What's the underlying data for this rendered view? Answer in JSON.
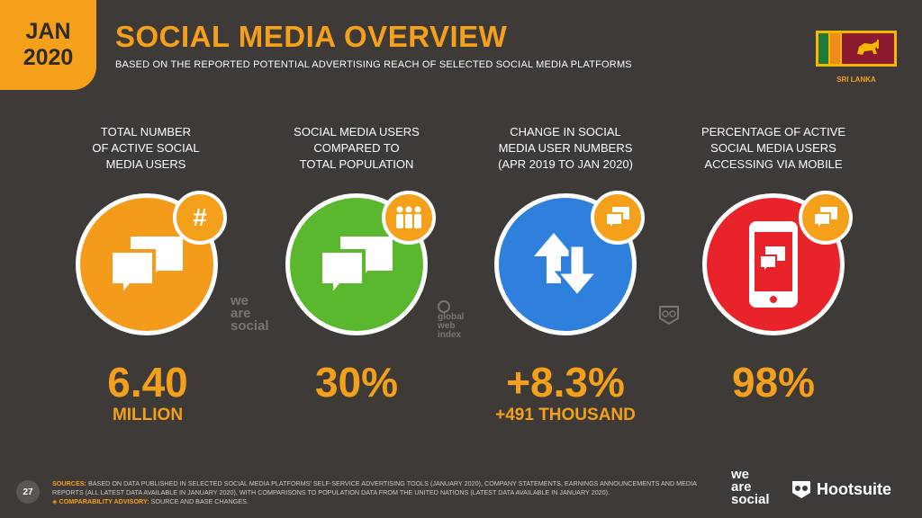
{
  "header": {
    "month": "JAN",
    "year": "2020",
    "title": "SOCIAL MEDIA OVERVIEW",
    "subtitle": "BASED ON THE REPORTED POTENTIAL ADVERTISING REACH OF SELECTED SOCIAL MEDIA PLATFORMS",
    "country": "SRI LANKA"
  },
  "columns": [
    {
      "label": "TOTAL NUMBER\nOF ACTIVE SOCIAL\nMEDIA USERS",
      "value": "6.40",
      "subvalue": "MILLION",
      "color": "#f59b1c",
      "icon": "chat-bubbles-icon",
      "badge_icon": "hashtag-icon"
    },
    {
      "label": "SOCIAL MEDIA USERS\nCOMPARED TO\nTOTAL POPULATION",
      "value": "30%",
      "subvalue": "",
      "color": "#5ab82e",
      "icon": "chat-bubbles-icon",
      "badge_icon": "people-icon"
    },
    {
      "label": "CHANGE IN SOCIAL\nMEDIA USER NUMBERS\n(APR 2019 TO JAN 2020)",
      "value": "+8.3%",
      "subvalue": "+491 THOUSAND",
      "color": "#2f7fdc",
      "icon": "up-down-arrows-icon",
      "badge_icon": "chat-icon"
    },
    {
      "label": "PERCENTAGE OF ACTIVE\nSOCIAL MEDIA USERS\nACCESSING VIA MOBILE",
      "value": "98%",
      "subvalue": "",
      "color": "#e8232a",
      "icon": "mobile-phone-icon",
      "badge_icon": "chat-icon"
    }
  ],
  "watermarks": {
    "we_are_social": "we are social",
    "global_web_index": "global web index"
  },
  "footer": {
    "page_number": "27",
    "sources_label": "SOURCES:",
    "sources_text": "BASED ON DATA PUBLISHED IN SELECTED SOCIAL MEDIA PLATFORMS' SELF-SERVICE ADVERTISING TOOLS (JANUARY 2020), COMPANY STATEMENTS, EARNINGS ANNOUNCEMENTS AND MEDIA REPORTS (ALL LATEST DATA AVAILABLE IN JANUARY 2020), WITH COMPARISONS TO POPULATION DATA FROM THE UNITED NATIONS (LATEST DATA AVAILABLE IN JANUARY 2020).",
    "advisory_label": "◈ COMPARABILITY ADVISORY:",
    "advisory_text": "SOURCE AND BASE CHANGES.",
    "logo_we": "we",
    "logo_are": "are",
    "logo_social": "social",
    "logo_hootsuite": "Hootsuite"
  },
  "colors": {
    "background": "#3d3a37",
    "accent": "#f5a01a"
  }
}
